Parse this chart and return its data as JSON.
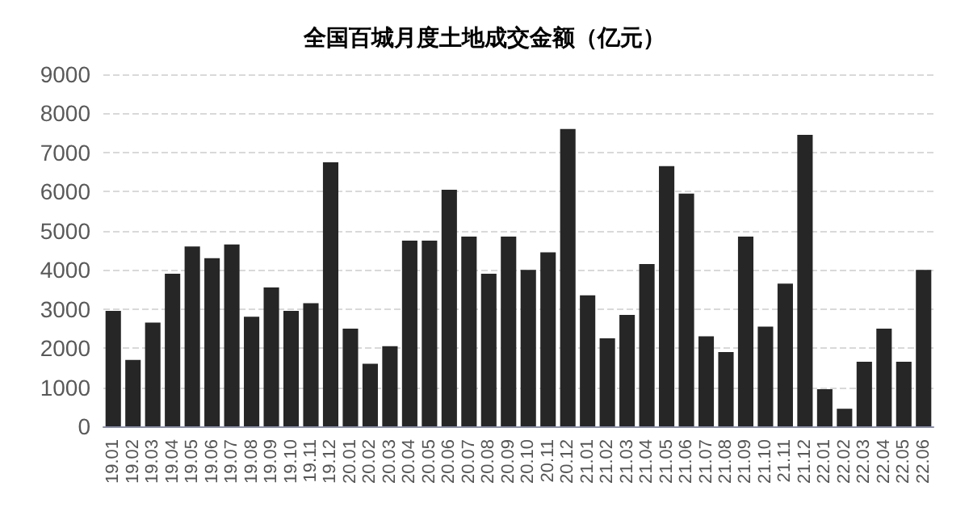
{
  "chart_data": {
    "type": "bar",
    "title": "全国百城月度土地成交金额（亿元）",
    "categories": [
      "19.01",
      "19.02",
      "19.03",
      "19.04",
      "19.05",
      "19.06",
      "19.07",
      "19.08",
      "19.09",
      "19.10",
      "19.11",
      "19.12",
      "20.01",
      "20.02",
      "20.03",
      "20.04",
      "20.05",
      "20.06",
      "20.07",
      "20.08",
      "20.09",
      "20.10",
      "20.11",
      "20.12",
      "21.01",
      "21.02",
      "21.03",
      "21.04",
      "21.05",
      "21.06",
      "21.07",
      "21.08",
      "21.09",
      "21.10",
      "21.11",
      "21.12",
      "22.01",
      "22.02",
      "22.03",
      "22.04",
      "22.05",
      "22.06"
    ],
    "values": [
      2950,
      1700,
      2650,
      3900,
      4600,
      4300,
      4650,
      2800,
      3550,
      2950,
      3150,
      6750,
      2500,
      1600,
      2050,
      4750,
      4750,
      6050,
      4850,
      3900,
      4850,
      4000,
      4450,
      7600,
      3350,
      2250,
      2850,
      4150,
      6650,
      5950,
      2300,
      1900,
      4850,
      2550,
      3650,
      7450,
      950,
      450,
      1650,
      2500,
      1650,
      4000
    ],
    "color": "#262626",
    "ylim": [
      0,
      9000
    ],
    "yticks": [
      0,
      1000,
      2000,
      3000,
      4000,
      5000,
      6000,
      7000,
      8000,
      9000
    ],
    "grid": "y"
  }
}
